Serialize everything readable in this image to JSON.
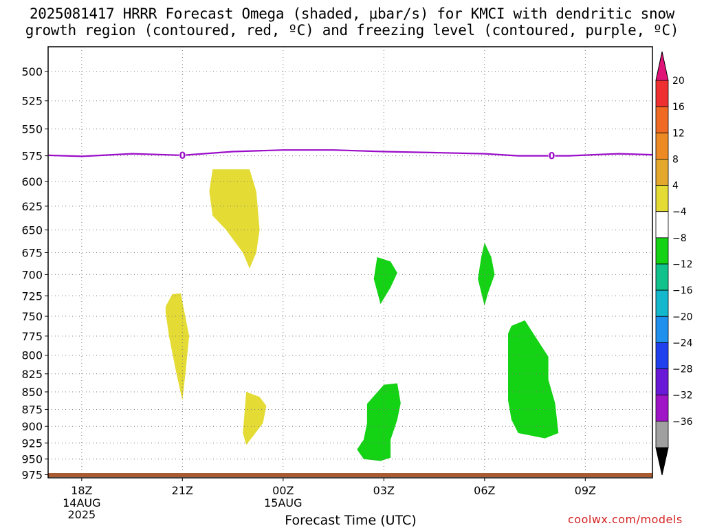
{
  "title_line1": "2025081417 HRRR Forecast Omega (shaded, μbar/s) for KMCI with dendritic snow",
  "title_line2": "growth region (contoured, red, ºC) and freezing level (contoured, purple, ºC)",
  "xlabel": "Forecast Time (UTC)",
  "credit": "coolwx.com/models",
  "colors": {
    "omega_positive": "#e4dc34",
    "omega_negative": "#14d214",
    "freezing_level": "#9a0cc8",
    "terrain": "#a85a30"
  },
  "chart_data": {
    "type": "area",
    "x_ticks": [
      {
        "label": "18Z",
        "sub": [
          "14AUG",
          "2025"
        ],
        "hour": 0
      },
      {
        "label": "21Z",
        "sub": [],
        "hour": 3
      },
      {
        "label": "00Z",
        "sub": [
          "15AUG"
        ],
        "hour": 6
      },
      {
        "label": "03Z",
        "sub": [],
        "hour": 9
      },
      {
        "label": "06Z",
        "sub": [],
        "hour": 12
      },
      {
        "label": "09Z",
        "sub": [],
        "hour": 15
      }
    ],
    "xlim_hours": [
      -1,
      17
    ],
    "ylim": [
      980,
      480
    ],
    "y_scale": "log-pressure",
    "y_ticks": [
      500,
      525,
      550,
      575,
      600,
      625,
      650,
      675,
      700,
      725,
      750,
      775,
      800,
      825,
      850,
      875,
      900,
      925,
      950,
      975
    ],
    "grid": true,
    "freezing_level": {
      "label": "0",
      "label_hours": [
        3,
        14
      ],
      "points": [
        [
          -1,
          574.5
        ],
        [
          0,
          575.5
        ],
        [
          1.5,
          573
        ],
        [
          3,
          574.5
        ],
        [
          4.5,
          571
        ],
        [
          6,
          569.5
        ],
        [
          7.5,
          569.5
        ],
        [
          9,
          571
        ],
        [
          10.5,
          572
        ],
        [
          12,
          573
        ],
        [
          13,
          575
        ],
        [
          14.5,
          575
        ],
        [
          16,
          573
        ],
        [
          17,
          574
        ]
      ]
    },
    "omega_regions": [
      {
        "level": "4 to 8",
        "color_key": "omega_positive",
        "points": [
          [
            3.9,
            588
          ],
          [
            5.0,
            588
          ],
          [
            5.2,
            610
          ],
          [
            5.3,
            650
          ],
          [
            5.2,
            675
          ],
          [
            5.0,
            693
          ],
          [
            4.8,
            675
          ],
          [
            4.3,
            650
          ],
          [
            3.9,
            635
          ],
          [
            3.8,
            610
          ]
        ]
      },
      {
        "level": "4 to 8",
        "color_key": "omega_positive",
        "points": [
          [
            2.5,
            738
          ],
          [
            2.7,
            723
          ],
          [
            2.95,
            722
          ],
          [
            3.2,
            775
          ],
          [
            3.1,
            820
          ],
          [
            3.0,
            862
          ],
          [
            2.8,
            820
          ],
          [
            2.6,
            775
          ],
          [
            2.5,
            745
          ]
        ]
      },
      {
        "level": "4 to 8",
        "color_key": "omega_positive",
        "points": [
          [
            4.9,
            850
          ],
          [
            5.3,
            857
          ],
          [
            5.5,
            870
          ],
          [
            5.4,
            895
          ],
          [
            5.1,
            915
          ],
          [
            4.9,
            928
          ],
          [
            4.8,
            910
          ],
          [
            4.85,
            880
          ]
        ]
      },
      {
        "level": "-4 to -8",
        "color_key": "omega_negative",
        "points": [
          [
            8.8,
            680
          ],
          [
            9.2,
            685
          ],
          [
            9.4,
            698
          ],
          [
            9.2,
            715
          ],
          [
            8.9,
            735
          ],
          [
            8.7,
            705
          ],
          [
            8.8,
            680
          ]
        ]
      },
      {
        "level": "-4 to -8",
        "color_key": "omega_negative",
        "points": [
          [
            12.0,
            664
          ],
          [
            12.2,
            680
          ],
          [
            12.3,
            700
          ],
          [
            12.1,
            722
          ],
          [
            12.0,
            737
          ],
          [
            11.8,
            705
          ],
          [
            11.9,
            680
          ]
        ]
      },
      {
        "level": "-4 to -8",
        "color_key": "omega_negative",
        "points": [
          [
            12.8,
            762
          ],
          [
            13.2,
            755
          ],
          [
            13.5,
            775
          ],
          [
            13.9,
            802
          ],
          [
            13.9,
            833
          ],
          [
            14.1,
            866
          ],
          [
            14.2,
            910
          ],
          [
            13.8,
            918
          ],
          [
            13.0,
            910
          ],
          [
            12.8,
            890
          ],
          [
            12.7,
            862
          ],
          [
            12.7,
            820
          ],
          [
            12.7,
            772
          ]
        ]
      },
      {
        "level": "-4 to -8",
        "color_key": "omega_negative",
        "points": [
          [
            8.5,
            867
          ],
          [
            9.0,
            840
          ],
          [
            9.4,
            838
          ],
          [
            9.5,
            866
          ],
          [
            9.4,
            890
          ],
          [
            9.2,
            920
          ],
          [
            9.2,
            948
          ],
          [
            8.9,
            953
          ],
          [
            8.4,
            950
          ],
          [
            8.2,
            935
          ],
          [
            8.4,
            920
          ],
          [
            8.5,
            895
          ]
        ]
      }
    ],
    "colorbar": {
      "labels": [
        "20",
        "16",
        "12",
        "8",
        "4",
        "−4",
        "−8",
        "−12",
        "−16",
        "−20",
        "−24",
        "−28",
        "−32",
        "−36"
      ],
      "colors": [
        "#ee3030",
        "#f06a24",
        "#ee8a24",
        "#e4a82c",
        "#e4dc34",
        "#ffffff",
        "#14d214",
        "#12c28c",
        "#14b8cc",
        "#2090ee",
        "#2040ee",
        "#6a18d8",
        "#a014c8",
        "#a0a0a0"
      ],
      "top_arrow_color": "#e01478",
      "bottom_arrow_color": "#000000"
    }
  }
}
